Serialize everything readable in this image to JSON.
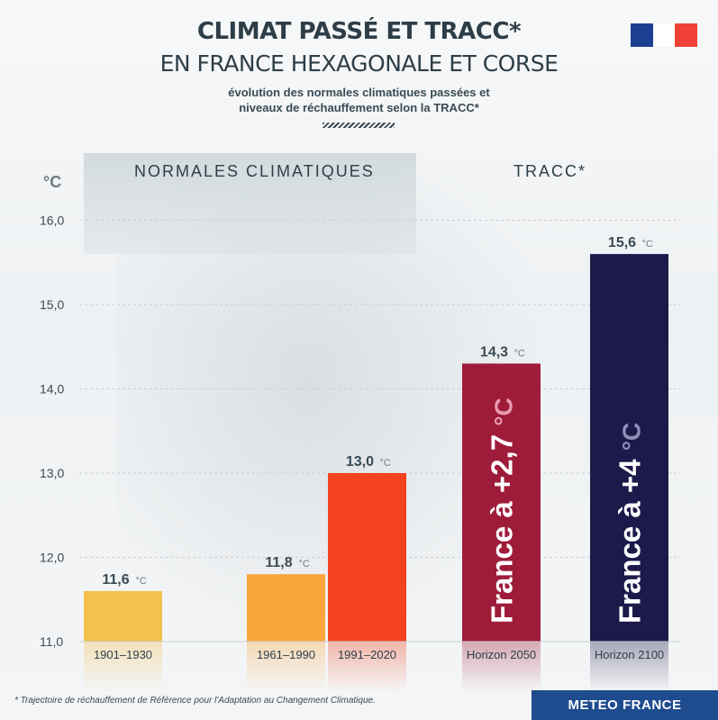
{
  "header": {
    "title_line1": "CLIMAT PASSÉ ET TRACC*",
    "title_line2": "EN FRANCE HEXAGONALE ET CORSE",
    "subtitle_line1": "évolution des normales climatiques passées et",
    "subtitle_line2": "niveaux de réchauffement selon la TRACC*"
  },
  "sections": {
    "left": "NORMALES CLIMATIQUES",
    "right": "TRACC*"
  },
  "footnote": "* Trajectoire de réchauffement de Référence pour l'Adaptation au Changement Climatique.",
  "logo": "METEO FRANCE",
  "colors": {
    "flag_blue": "#1f3f93",
    "flag_red": "#ef4135",
    "logo_bg": "#1f4b8f"
  },
  "chart_data": {
    "type": "bar",
    "ylabel": "°C",
    "ylim": [
      11.0,
      16.0
    ],
    "yticks": [
      "11,0",
      "12,0",
      "13,0",
      "14,0",
      "15,0",
      "16,0"
    ],
    "unit": "°C",
    "grid": true,
    "bars": [
      {
        "category": "1901–1930",
        "value": 11.6,
        "label": "11,6",
        "color": "#f2c14e",
        "overlay": ""
      },
      {
        "category": "1961–1990",
        "value": 11.8,
        "label": "11,8",
        "color": "#f9a53c",
        "overlay": ""
      },
      {
        "category": "1991–2020",
        "value": 13.0,
        "label": "13,0",
        "color": "#f4421e",
        "overlay": ""
      },
      {
        "category": "Horizon 2050",
        "value": 14.3,
        "label": "14,3",
        "color": "#9e1c3a",
        "overlay": "France à +2,7",
        "overlay_unit": "°C",
        "overlay_unit_color": "#e79cb0"
      },
      {
        "category": "Horizon 2100",
        "value": 15.6,
        "label": "15,6",
        "color": "#1c1a4a",
        "overlay": "France à +4",
        "overlay_unit": "°C",
        "overlay_unit_color": "#8f8fb8"
      }
    ]
  }
}
